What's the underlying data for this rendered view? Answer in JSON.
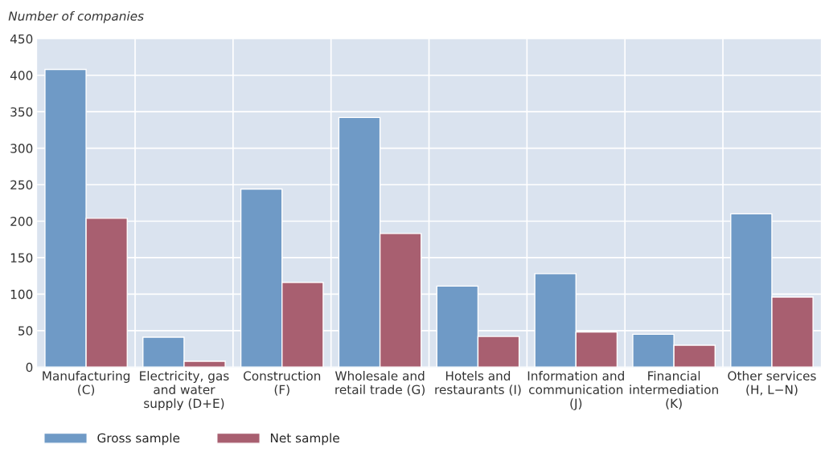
{
  "chart_data": {
    "type": "bar",
    "ylabel": "Number of companies",
    "categories": [
      "Manufacturing\n(C)",
      "Electricity, gas\nand water\nsupply (D+E)",
      "Construction\n(F)",
      "Wholesale and\nretail trade (G)",
      "Hotels and\nrestaurants (I)",
      "Information and\ncommunication\n(J)",
      "Financial\nintermediation\n(K)",
      "Other services\n(H, L−N)"
    ],
    "series": [
      {
        "name": "Gross sample",
        "color": "#6f9ac6",
        "values": [
          408,
          41,
          244,
          342,
          111,
          128,
          45,
          210
        ]
      },
      {
        "name": "Net sample",
        "color": "#a85f70",
        "values": [
          204,
          8,
          116,
          183,
          42,
          48,
          30,
          96
        ]
      }
    ],
    "ylim": [
      0,
      450
    ],
    "yticks": [
      0,
      50,
      100,
      150,
      200,
      250,
      300,
      350,
      400,
      450
    ],
    "grid": true,
    "legend": "bottom left"
  }
}
